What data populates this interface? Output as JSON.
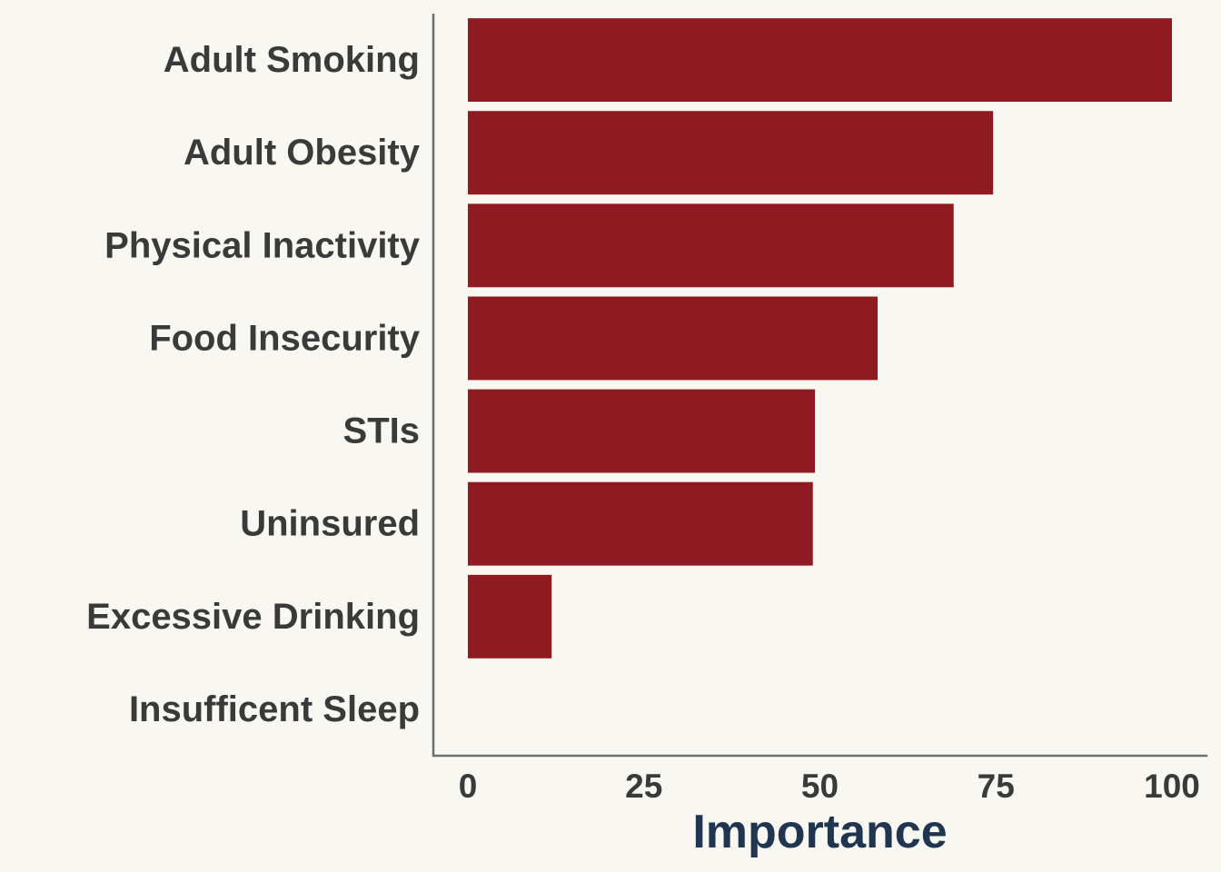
{
  "chart_data": {
    "type": "bar",
    "orientation": "horizontal",
    "title": "",
    "xlabel": "Importance",
    "ylabel": "",
    "categories": [
      "Adult Smoking",
      "Adult Obesity",
      "Physical Inactivity",
      "Food Insecurity",
      "STIs",
      "Uninsured",
      "Excessive Drinking",
      "Insufficent Sleep"
    ],
    "values": [
      100,
      74.6,
      69,
      58.2,
      49.3,
      49,
      11.9,
      0
    ],
    "xlim": [
      -4.9,
      104.9
    ],
    "xticks": [
      0,
      25,
      50,
      75,
      100
    ],
    "xtick_labels": [
      "0",
      "25",
      "50",
      "75",
      "100"
    ],
    "grid": false,
    "legend": "none",
    "colors": {
      "bar": "#8F1A22",
      "background": "#F9F7F1",
      "axis_line": "#6E6E6E",
      "label_text": "#3A3A3A",
      "axis_title": "#1F3550"
    }
  }
}
